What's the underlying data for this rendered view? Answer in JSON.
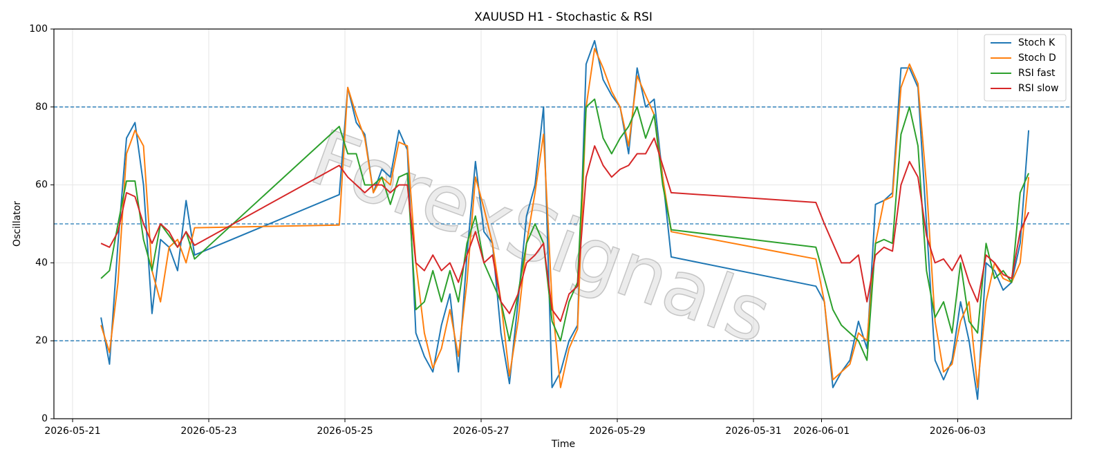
{
  "chart_data": {
    "type": "line",
    "title": "XAUUSD H1 - Stochastic & RSI",
    "xlabel": "Time",
    "ylabel": "Oscillator",
    "watermark": "ForexSignals",
    "x": [
      "2026-05-21T10:00",
      "2026-05-21T13:00",
      "2026-05-21T16:00",
      "2026-05-21T19:00",
      "2026-05-21T22:00",
      "2026-05-22T01:00",
      "2026-05-22T04:00",
      "2026-05-22T07:00",
      "2026-05-22T10:00",
      "2026-05-22T13:00",
      "2026-05-22T16:00",
      "2026-05-22T19:00",
      "2026-05-24T22:00",
      "2026-05-25T01:00",
      "2026-05-25T04:00",
      "2026-05-25T07:00",
      "2026-05-25T10:00",
      "2026-05-25T13:00",
      "2026-05-25T16:00",
      "2026-05-25T19:00",
      "2026-05-25T22:00",
      "2026-05-26T01:00",
      "2026-05-26T04:00",
      "2026-05-26T07:00",
      "2026-05-26T10:00",
      "2026-05-26T13:00",
      "2026-05-26T16:00",
      "2026-05-26T19:00",
      "2026-05-26T22:00",
      "2026-05-27T01:00",
      "2026-05-27T04:00",
      "2026-05-27T07:00",
      "2026-05-27T10:00",
      "2026-05-27T13:00",
      "2026-05-27T16:00",
      "2026-05-27T19:00",
      "2026-05-27T22:00",
      "2026-05-28T01:00",
      "2026-05-28T04:00",
      "2026-05-28T07:00",
      "2026-05-28T10:00",
      "2026-05-28T13:00",
      "2026-05-28T16:00",
      "2026-05-28T19:00",
      "2026-05-28T22:00",
      "2026-05-29T01:00",
      "2026-05-29T04:00",
      "2026-05-29T07:00",
      "2026-05-29T10:00",
      "2026-05-29T13:00",
      "2026-05-29T16:00",
      "2026-05-29T19:00",
      "2026-05-31T22:00",
      "2026-06-01T01:00",
      "2026-06-01T04:00",
      "2026-06-01T07:00",
      "2026-06-01T10:00",
      "2026-06-01T13:00",
      "2026-06-01T16:00",
      "2026-06-01T19:00",
      "2026-06-01T22:00",
      "2026-06-02T01:00",
      "2026-06-02T04:00",
      "2026-06-02T07:00",
      "2026-06-02T10:00",
      "2026-06-02T13:00",
      "2026-06-02T16:00",
      "2026-06-02T19:00",
      "2026-06-02T22:00",
      "2026-06-03T01:00",
      "2026-06-03T04:00",
      "2026-06-03T07:00",
      "2026-06-03T10:00",
      "2026-06-03T13:00",
      "2026-06-03T16:00",
      "2026-06-03T19:00",
      "2026-06-03T22:00",
      "2026-06-04T01:00"
    ],
    "series": [
      {
        "name": "Stoch K",
        "color": "#1f77b4",
        "values": [
          26,
          14,
          45,
          72,
          76,
          60,
          27,
          46,
          44,
          38,
          56,
          42,
          57.5,
          85,
          76,
          73,
          58,
          64,
          62,
          74,
          69,
          22,
          16,
          12,
          24,
          32,
          12,
          42,
          66,
          48,
          45,
          22,
          9,
          30,
          52,
          60,
          80,
          8,
          12,
          20,
          24,
          91,
          97,
          87,
          83,
          80,
          68,
          90,
          80,
          82,
          62,
          41.5,
          34,
          30,
          8,
          12,
          15,
          25,
          18,
          55,
          56,
          58,
          90,
          90,
          85,
          50,
          15,
          10,
          15,
          30,
          20,
          5,
          40,
          38,
          33,
          35,
          45,
          74
        ]
      },
      {
        "name": "Stoch D",
        "color": "#ff7f0e",
        "values": [
          24,
          17,
          35,
          68,
          74,
          70,
          38,
          30,
          44,
          46,
          40,
          49,
          49.7,
          85,
          78,
          72,
          58,
          62,
          60,
          71,
          70,
          40,
          22,
          13,
          18,
          28,
          16,
          35,
          62,
          54,
          45,
          30,
          11,
          25,
          45,
          58,
          73,
          30,
          8,
          18,
          23,
          80,
          95,
          90,
          84,
          80,
          70,
          88,
          83,
          78,
          62,
          48,
          41,
          30,
          10,
          12,
          14,
          22,
          20,
          45,
          56,
          57,
          85,
          91,
          86,
          60,
          25,
          12,
          14,
          25,
          30,
          8,
          30,
          40,
          36,
          35,
          40,
          62
        ]
      },
      {
        "name": "RSI fast",
        "color": "#2ca02c",
        "values": [
          36,
          38,
          50,
          61,
          61,
          46,
          38,
          50,
          47,
          44,
          48,
          41,
          75,
          68,
          68,
          60,
          60,
          62,
          55,
          62,
          63,
          28,
          30,
          38,
          30,
          38,
          30,
          45,
          52,
          40,
          35,
          30,
          20,
          32,
          45,
          50,
          45,
          25,
          20,
          30,
          35,
          80,
          82,
          72,
          68,
          72,
          75,
          80,
          72,
          78,
          60,
          48.5,
          44,
          36,
          28,
          24,
          22,
          20,
          15,
          45,
          46,
          45,
          73,
          80,
          70,
          38,
          26,
          30,
          22,
          40,
          25,
          22,
          45,
          36,
          38,
          35,
          58,
          63
        ]
      },
      {
        "name": "RSI slow",
        "color": "#d62728",
        "values": [
          45,
          44,
          48,
          58,
          57,
          50,
          45,
          50,
          48,
          44,
          48,
          44.5,
          65,
          62,
          60,
          58,
          60,
          60,
          58,
          60,
          60,
          40,
          38,
          42,
          38,
          40,
          35,
          42,
          48,
          40,
          42,
          30,
          27,
          32,
          40,
          42,
          45,
          28,
          25,
          32,
          34,
          62,
          70,
          65,
          62,
          64,
          65,
          68,
          68,
          72,
          65,
          58,
          55.5,
          50,
          45,
          40,
          40,
          42,
          30,
          42,
          44,
          43,
          60,
          66,
          62,
          47,
          40,
          41,
          38,
          42,
          35,
          30,
          42,
          40,
          37,
          36,
          48,
          53
        ]
      }
    ],
    "hlines": [
      80,
      50,
      20
    ],
    "hline_color": "#1f77b4",
    "xlim": [
      "2026-05-20T17:25",
      "2026-06-04T16:05"
    ],
    "xticks": [
      "2026-05-21",
      "2026-05-23",
      "2026-05-25",
      "2026-05-27",
      "2026-05-29",
      "2026-05-31",
      "2026-06-01",
      "2026-06-03"
    ],
    "ylim": [
      0,
      100
    ],
    "yticks": [
      0,
      20,
      40,
      60,
      80,
      100
    ],
    "grid": true,
    "legend": "upper right"
  }
}
